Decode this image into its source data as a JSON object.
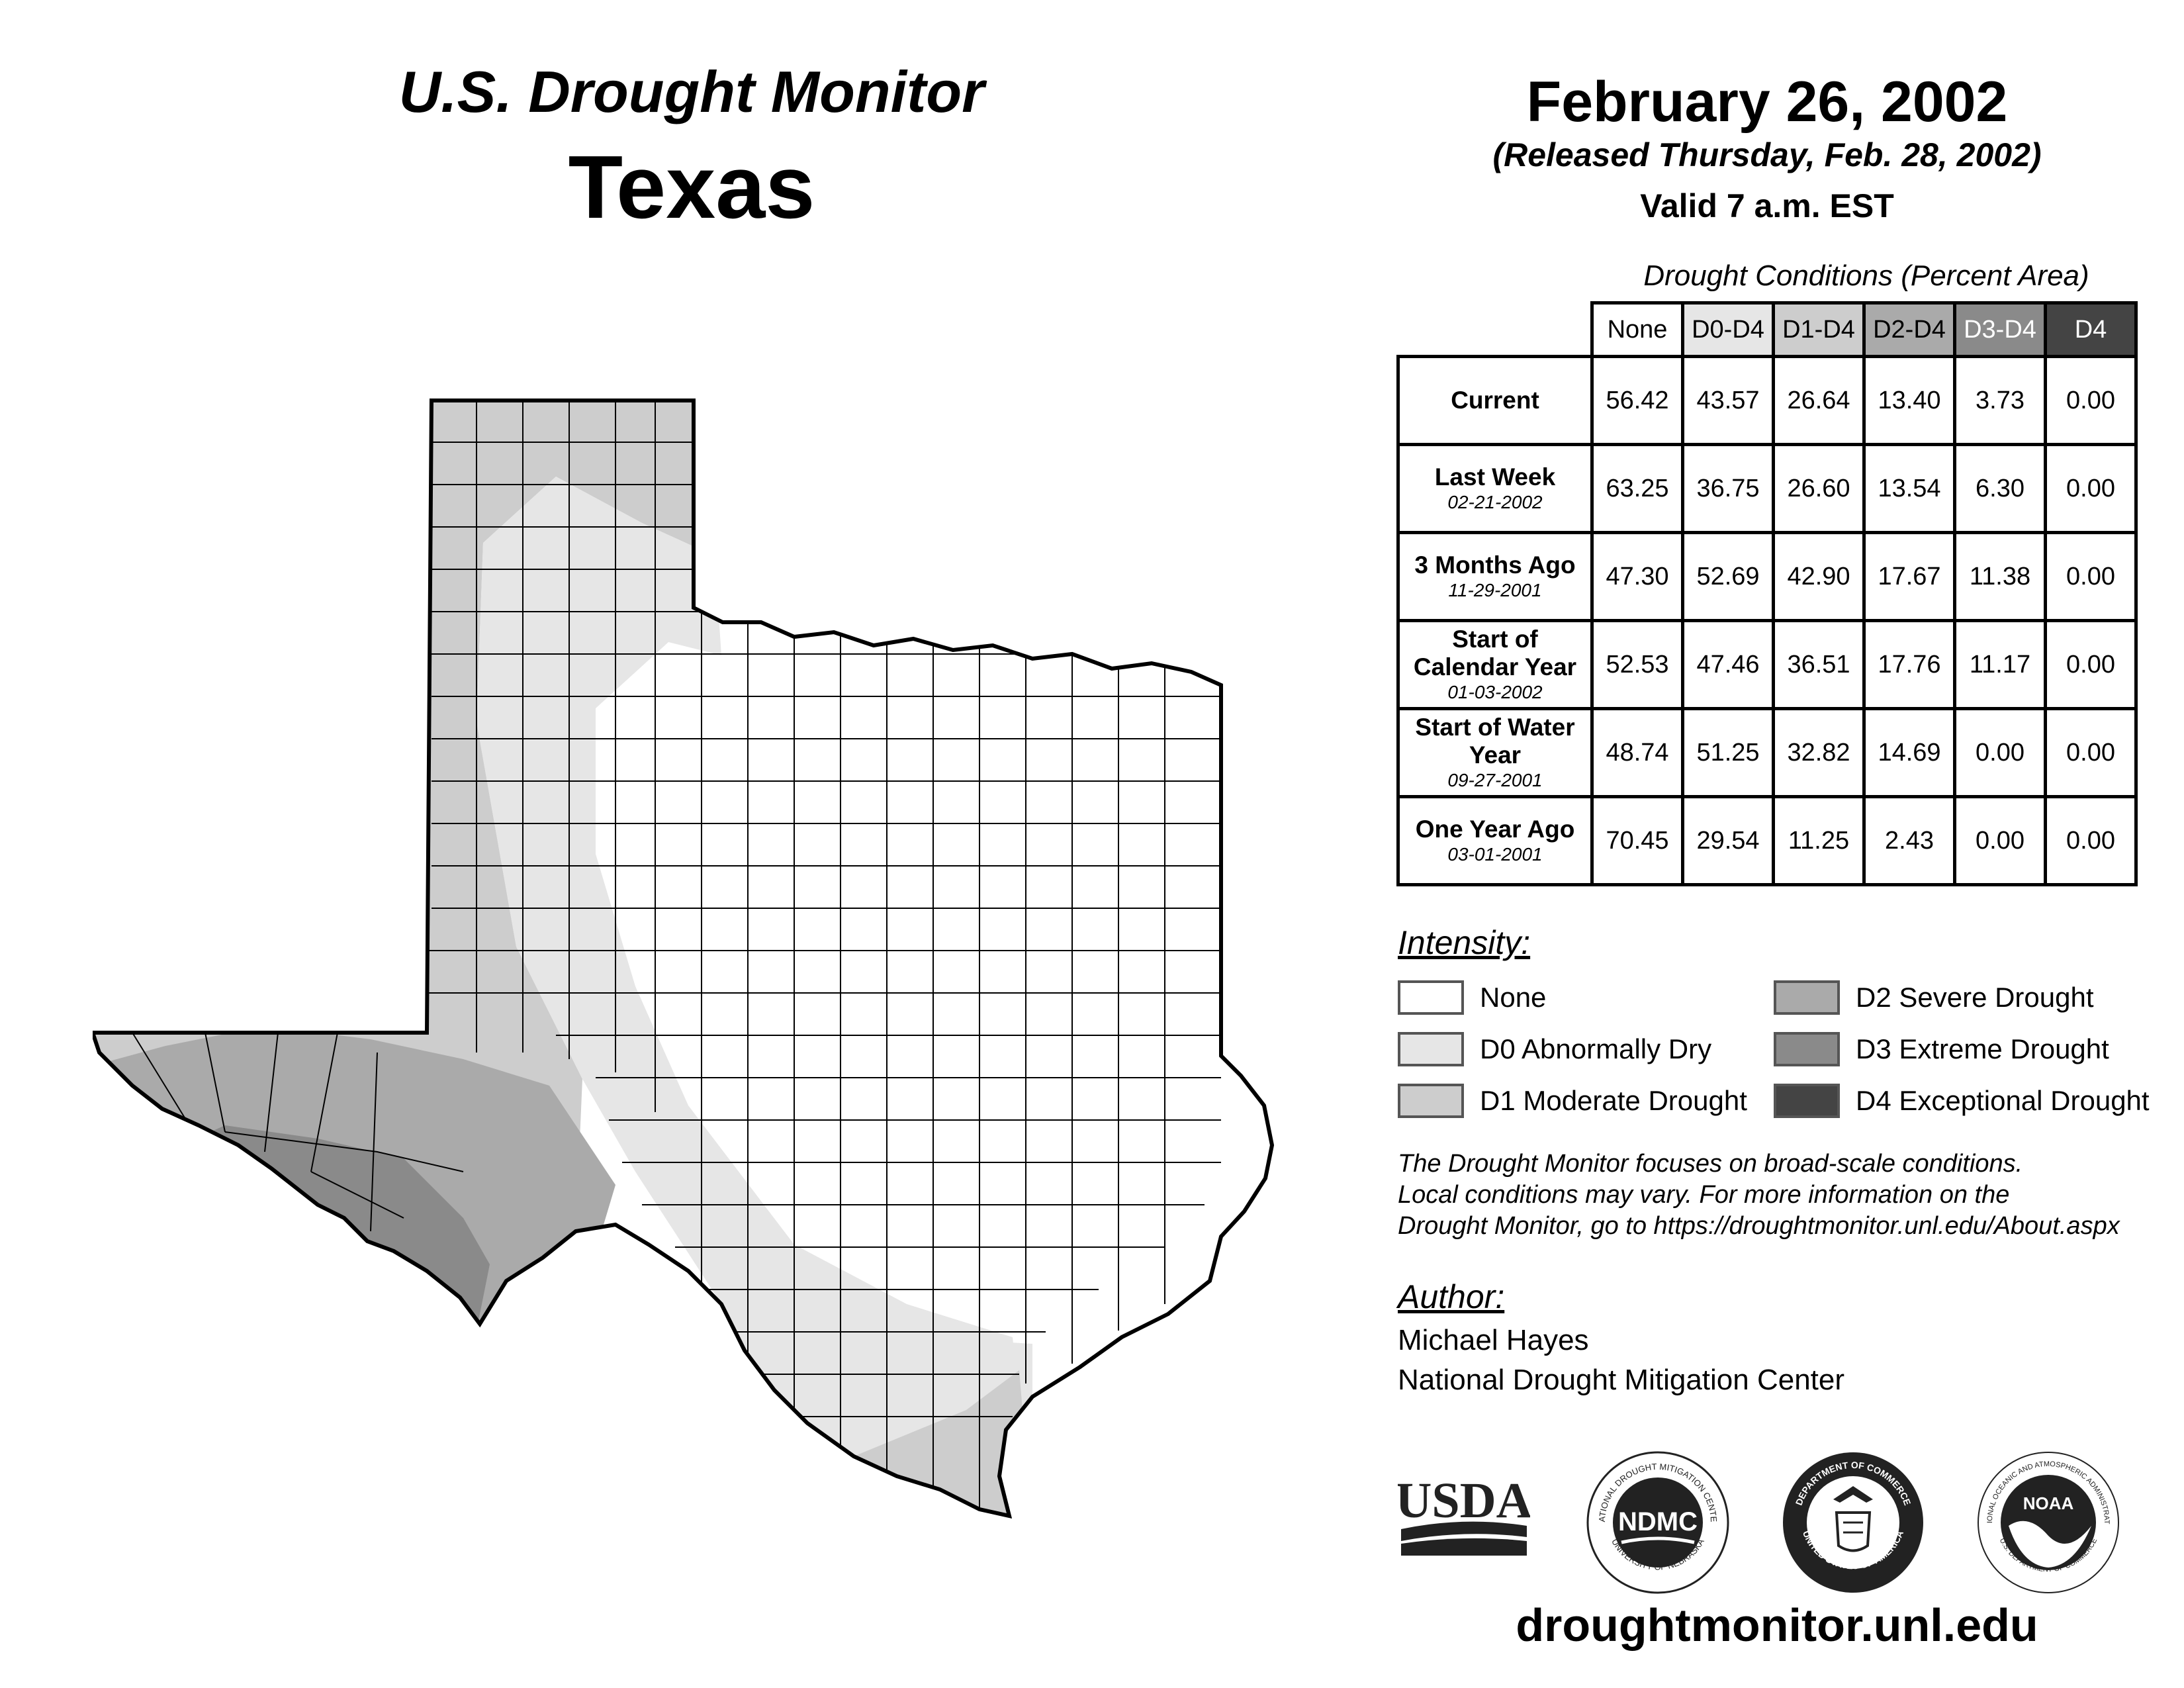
{
  "header": {
    "title": "U.S. Drought Monitor",
    "state": "Texas",
    "date": "February 26, 2002",
    "released": "(Released Thursday, Feb. 28, 2002)",
    "valid": "Valid 7 a.m. EST"
  },
  "table": {
    "title": "Drought Conditions (Percent Area)",
    "columns": [
      "None",
      "D0-D4",
      "D1-D4",
      "D2-D4",
      "D3-D4",
      "D4"
    ],
    "rows": [
      {
        "label": "Current",
        "date": "",
        "values": [
          "56.42",
          "43.57",
          "26.64",
          "13.40",
          "3.73",
          "0.00"
        ]
      },
      {
        "label": "Last Week",
        "date": "02-21-2002",
        "values": [
          "63.25",
          "36.75",
          "26.60",
          "13.54",
          "6.30",
          "0.00"
        ]
      },
      {
        "label": "3 Months Ago",
        "date": "11-29-2001",
        "values": [
          "47.30",
          "52.69",
          "42.90",
          "17.67",
          "11.38",
          "0.00"
        ]
      },
      {
        "label": "Start of Calendar Year",
        "date": "01-03-2002",
        "values": [
          "52.53",
          "47.46",
          "36.51",
          "17.76",
          "11.17",
          "0.00"
        ]
      },
      {
        "label": "Start of Water Year",
        "date": "09-27-2001",
        "values": [
          "48.74",
          "51.25",
          "32.82",
          "14.69",
          "0.00",
          "0.00"
        ]
      },
      {
        "label": "One Year Ago",
        "date": "03-01-2001",
        "values": [
          "70.45",
          "29.54",
          "11.25",
          "2.43",
          "0.00",
          "0.00"
        ]
      }
    ]
  },
  "legend": {
    "title": "Intensity:",
    "items": [
      {
        "label": "None",
        "color": "#ffffff"
      },
      {
        "label": "D0 Abnormally Dry",
        "color": "#e6e6e6"
      },
      {
        "label": "D1 Moderate Drought",
        "color": "#cdcdcd"
      },
      {
        "label": "D2 Severe Drought",
        "color": "#aaaaaa"
      },
      {
        "label": "D3 Extreme Drought",
        "color": "#8a8a8a"
      },
      {
        "label": "D4 Exceptional Drought",
        "color": "#444444"
      }
    ]
  },
  "note": {
    "line1": "The Drought Monitor focuses on broad-scale conditions.",
    "line2": "Local conditions may vary. For more information on the",
    "line3": "Drought Monitor, go to https://droughtmonitor.unl.edu/About.aspx"
  },
  "author": {
    "title": "Author:",
    "name": "Michael Hayes",
    "org": "National Drought Mitigation Center"
  },
  "logos": {
    "usda": "USDA",
    "ndmc": "NDMC",
    "ndmc_ring": "NATIONAL DROUGHT MITIGATION CENTER",
    "ndmc_ring_bottom": "UNIVERSITY OF NEBRASKA",
    "doc_ring": "DEPARTMENT OF COMMERCE",
    "doc_ring_bottom": "UNITED STATES OF AMERICA",
    "noaa": "NOAA",
    "noaa_ring": "NATIONAL OCEANIC AND ATMOSPHERIC ADMINISTRATION",
    "noaa_ring_bottom": "U.S. DEPARTMENT OF COMMERCE"
  },
  "url": "droughtmonitor.unl.edu"
}
